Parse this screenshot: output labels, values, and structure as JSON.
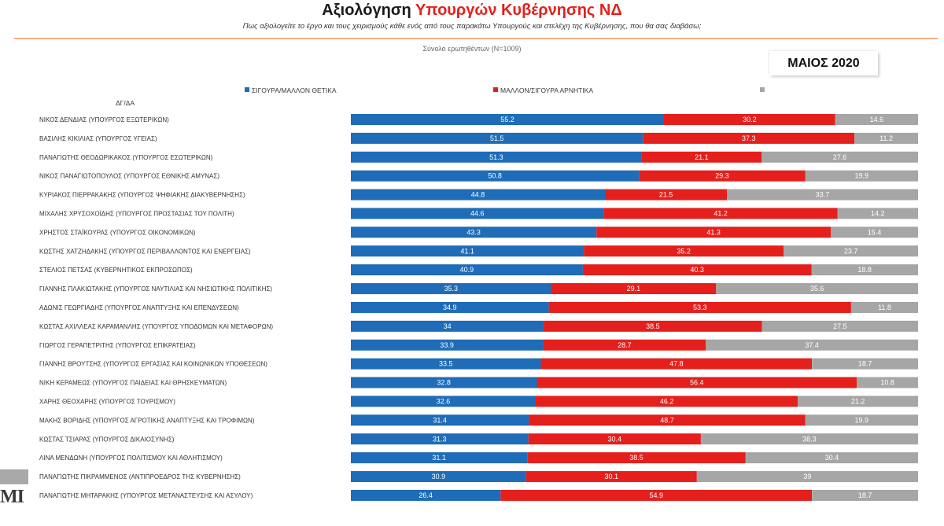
{
  "header": {
    "title_part1": "Αξιολόγηση",
    "title_part2": "Υπουργών Κυβέρνησης ΝΔ",
    "subtitle": "Πως αξιολογείτε το έργο και τους χειρισμούς κάθε ενός από τους παρακάτω Υπουργούς και στελέχη της Κυβέρνησης, που θα σας διαβάσω;",
    "sample_note": "Σύνολο ερωτηθέντων (N=1009)",
    "period": "ΜΑΙΟΣ 2020"
  },
  "logo": {
    "text": "MI"
  },
  "colors": {
    "title_accent": "#e3211c",
    "divider": "#f4b183"
  },
  "chart_data": {
    "type": "bar",
    "orientation": "horizontal",
    "stacked": true,
    "categories": [
      "ΝΙΚΟΣ ΔΕΝΔΙΑΣ (ΥΠΟΥΡΓΟΣ ΕΞΩΤΕΡΙΚΩΝ)",
      "ΒΑΣΙΛΗΣ ΚΙΚΙΛΙΑΣ (ΥΠΟΥΡΓΟΣ ΥΓΕΙΑΣ)",
      "ΠΑΝΑΓΙΩΤΗΣ ΘΕΟΔΩΡΙΚΑΚΟΣ (ΥΠΟΥΡΓΟΣ ΕΣΩΤΕΡΙΚΩΝ)",
      "ΝΙΚΟΣ ΠΑΝΑΓΙΩΤΟΠΟΥΛΟΣ (ΥΠΟΥΡΓΟΣ ΕΘΝΙΚΗΣ ΑΜΥΝΑΣ)",
      "ΚΥΡΙΑΚΟΣ ΠΙΕΡΡΑΚΑΚΗΣ (ΥΠΟΥΡΓΟΣ ΨΗΦΙΑΚΗΣ ΔΙΑΚΥΒΕΡΝΗΣΗΣ)",
      "ΜΙΧΑΛΗΣ ΧΡΥΣΟΧΟΪΔΗΣ (ΥΠΟΥΡΓΟΣ ΠΡΟΣΤΑΣΙΑΣ ΤΟΥ ΠΟΛΙΤΗ)",
      "ΧΡΗΣΤΟΣ ΣΤΑΪΚΟΥΡΑΣ (ΥΠΟΥΡΓΟΣ ΟΙΚΟΝΟΜΙΚΩΝ)",
      "ΚΩΣΤΗΣ ΧΑΤΖΗΔΑΚΗΣ (ΥΠΟΥΡΓΟΣ ΠΕΡΙΒΑΛΛΟΝΤΟΣ ΚΑΙ ΕΝΕΡΓΕΙΑΣ)",
      "ΣΤΕΛΙΟΣ ΠΕΤΣΑΣ (ΚΥΒΕΡΝΗΤΙΚΟΣ ΕΚΠΡΟΣΩΠΟΣ)",
      "ΓΙΑΝΝΗΣ ΠΛΑΚΙΩΤΑΚΗΣ (ΥΠΟΥΡΓΟΣ ΝΑΥΤΙΛΙΑΣ ΚΑΙ ΝΗΣΙΩΤΙΚΗΣ ΠΟΛΙΤΙΚΗΣ)",
      "ΑΔΩΝΙΣ ΓΕΩΡΓΙΑΔΗΣ (ΥΠΟΥΡΓΟΣ ΑΝΑΠΤΥΞΗΣ ΚΑΙ ΕΠΕΝΔΥΣΕΩΝ)",
      "ΚΩΣΤΑΣ ΑΧΙΛΛΕΑΣ ΚΑΡΑΜΑΝΛΗΣ (ΥΠΟΥΡΓΟΣ ΥΠΟΔΟΜΩΝ ΚΑΙ ΜΕΤΑΦΟΡΩΝ)",
      "ΓΙΩΡΓΟΣ ΓΕΡΑΠΕΤΡΙΤΗΣ (ΥΠΟΥΡΓΟΣ ΕΠΙΚΡΑΤΕΙΑΣ)",
      "ΓΙΑΝΝΗΣ ΒΡΟΥΤΣΗΣ (ΥΠΟΥΡΓΟΣ ΕΡΓΑΣΙΑΣ ΚΑΙ ΚΟΙΝΩΝΙΚΩΝ ΥΠΟΘΕΣΕΩΝ)",
      "ΝΙΚΗ ΚΕΡΑΜΕΩΣ (ΥΠΟΥΡΓΟΣ ΠΑΙΔΕΙΑΣ ΚΑΙ ΘΡΗΣΚΕΥΜΑΤΩΝ)",
      "ΧΑΡΗΣ ΘΕΟΧΑΡΗΣ (ΥΠΟΥΡΓΟΣ ΤΟΥΡΙΣΜΟΥ)",
      "ΜΑΚΗΣ ΒΟΡΙΔΗΣ (ΥΠΟΥΡΓΟΣ ΑΓΡΟΤΙΚΗΣ ΑΝΑΠΤΥΞΗΣ ΚΑΙ ΤΡΟΦΙΜΩΝ)",
      "ΚΩΣΤΑΣ ΤΣΙΑΡΑΣ (ΥΠΟΥΡΓΟΣ ΔΙΚΑΙΟΣΥΝΗΣ)",
      "ΛΙΝΑ ΜΕΝΔΩΝΗ (ΥΠΟΥΡΓΟΣ ΠΟΛΙΤΙΣΜΟΥ ΚΑΙ ΑΘΛΗΤΙΣΜΟΥ)",
      "ΠΑΝΑΓΙΩΤΗΣ ΠΙΚΡΑΜΜΕΝΟΣ (ΑΝΤΙΠΡΟΕΔΡΟΣ ΤΗΣ ΚΥΒΕΡΝΗΣΗΣ)",
      "ΠΑΝΑΓΙΩΤΗΣ ΜΗΤΑΡΑΚΗΣ (ΥΠΟΥΡΓΟΣ ΜΕΤΑΝΑΣΤΕΥΣΗΣ ΚΑΙ ΑΣΥΛΟΥ)"
    ],
    "series": [
      {
        "name": "ΣΙΓΟΥΡΑ/ΜΑΛΛΟΝ ΘΕΤΙΚΑ",
        "color": "#1f6cb8",
        "values": [
          55.2,
          51.5,
          51.3,
          50.8,
          44.8,
          44.6,
          43.3,
          41.1,
          40.9,
          35.3,
          34.9,
          34,
          33.9,
          33.5,
          32.8,
          32.6,
          31.4,
          31.3,
          31.1,
          30.9,
          26.4
        ]
      },
      {
        "name": "ΜΑΛΛΟΝ/ΣΙΓΟΥΡΑ ΑΡΝΗΤΙΚΑ",
        "color": "#e41f1c",
        "values": [
          30.2,
          37.3,
          21.1,
          29.3,
          21.5,
          41.2,
          41.3,
          35.2,
          40.3,
          29.1,
          53.3,
          38.5,
          28.7,
          47.8,
          56.4,
          46.2,
          48.7,
          30.4,
          38.5,
          30.1,
          54.9
        ]
      },
      {
        "name": "ΔΓ/ΔΑ",
        "color": "#a6a6a6",
        "values": [
          14.6,
          11.2,
          27.6,
          19.9,
          33.7,
          14.2,
          15.4,
          23.7,
          18.8,
          35.6,
          11.8,
          27.5,
          37.4,
          18.7,
          10.8,
          21.2,
          19.9,
          38.3,
          30.4,
          39,
          18.7
        ]
      }
    ],
    "xlim": [
      0,
      100
    ],
    "grid": false,
    "legend": "top"
  }
}
